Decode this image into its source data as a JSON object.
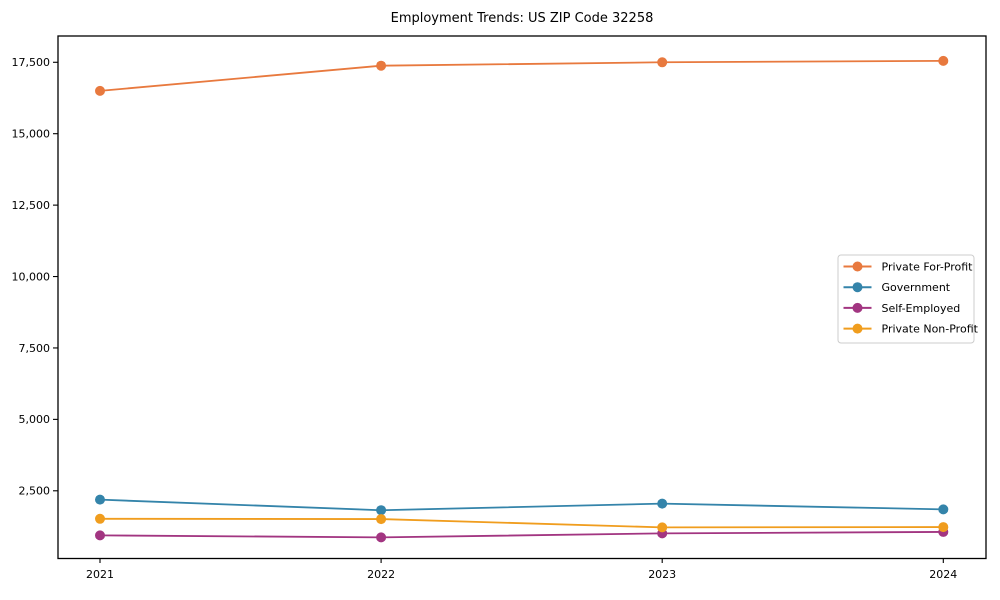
{
  "chart_data": {
    "type": "line",
    "title": "Employment Trends: US ZIP Code 32258",
    "xlabel": "",
    "ylabel": "",
    "x": [
      2021,
      2022,
      2023,
      2024
    ],
    "x_tick_labels": [
      "2021",
      "2022",
      "2023",
      "2024"
    ],
    "yticks": [
      2500,
      5000,
      7500,
      10000,
      12500,
      15000,
      17500
    ],
    "ytick_labels": [
      "2,500",
      "5,000",
      "7,500",
      "10,000",
      "12,500",
      "15,000",
      "17,500"
    ],
    "ylim": [
      130,
      18420
    ],
    "grid": false,
    "legend_position": "center right",
    "legend_border_color": "#cccccc",
    "axes_color": "#000000",
    "background_color": "#ffffff",
    "marker": "circle",
    "series": [
      {
        "name": "Private For-Profit",
        "color": "#e8793e",
        "values": [
          16500,
          17380,
          17500,
          17550
        ]
      },
      {
        "name": "Government",
        "color": "#3484aa",
        "values": [
          2190,
          1820,
          2050,
          1850
        ]
      },
      {
        "name": "Self-Employed",
        "color": "#a23581",
        "values": [
          940,
          870,
          1010,
          1060
        ]
      },
      {
        "name": "Private Non-Profit",
        "color": "#f09d1e",
        "values": [
          1520,
          1510,
          1220,
          1230
        ]
      }
    ]
  }
}
